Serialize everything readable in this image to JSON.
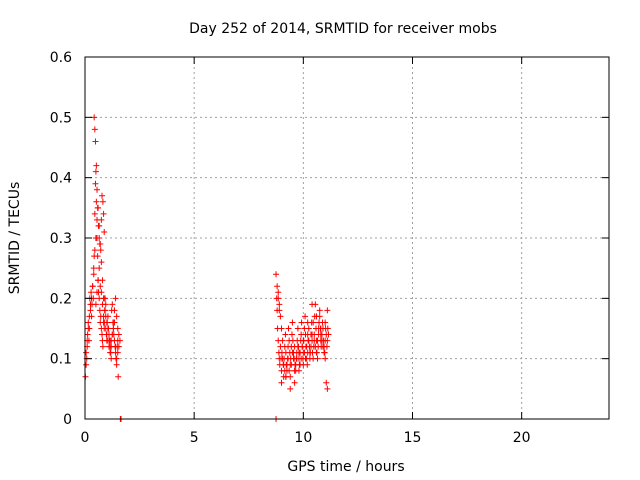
{
  "chart_data": {
    "type": "scatter",
    "title": "Day 252 of 2014, SRMTID for receiver mobs",
    "xlabel": "GPS time / hours",
    "ylabel": "SRMTID / TECUs",
    "xlim": [
      0,
      24
    ],
    "ylim": [
      0,
      0.6
    ],
    "xticks": [
      0,
      5,
      10,
      15,
      20
    ],
    "yticks": [
      0,
      0.1,
      0.2,
      0.3,
      0.4,
      0.5,
      0.6
    ],
    "xtick_labels": [
      "0",
      "5",
      "10",
      "15",
      "20"
    ],
    "ytick_labels": [
      "0",
      "0.1",
      "0.2",
      "0.3",
      "0.4",
      "0.5",
      "0.6"
    ],
    "grid": true,
    "marker": "plus",
    "color": "#ff0000",
    "series": [
      {
        "x": [
          0.02,
          0.05,
          0.08,
          0.1,
          0.12,
          0.15,
          0.18,
          0.2,
          0.22,
          0.25,
          0.28,
          0.3,
          0.32,
          0.35,
          0.38,
          0.4,
          0.42,
          0.45,
          0.48,
          0.5,
          0.52,
          0.55,
          0.58,
          0.6,
          0.62,
          0.65,
          0.68,
          0.7,
          0.72,
          0.75,
          0.78,
          0.8,
          0.82,
          0.85,
          0.88,
          0.9,
          0.92,
          0.95,
          0.98,
          1.0,
          1.02,
          1.05,
          1.08,
          1.1,
          1.12,
          1.15,
          1.18,
          1.2,
          1.22,
          1.25,
          1.28,
          1.3,
          1.32,
          1.35,
          1.38,
          1.4,
          1.42,
          1.45,
          1.48,
          1.5,
          1.52,
          1.55,
          0.05,
          0.1,
          0.15,
          0.2,
          0.25,
          0.3,
          0.35,
          0.4,
          0.45,
          0.5,
          0.55,
          0.6,
          0.65,
          0.7,
          0.75,
          0.8,
          0.85,
          0.9,
          0.95,
          1.0,
          1.05,
          1.1,
          1.15,
          1.2,
          1.25,
          1.3,
          1.35,
          1.4,
          1.45,
          1.5,
          0.42,
          0.45,
          0.48,
          0.52,
          0.55,
          0.58,
          0.62,
          0.65,
          0.68,
          0.72,
          0.75,
          0.78,
          0.82,
          0.85,
          0.88,
          0.92,
          0.5,
          0.55,
          0.6,
          0.65,
          0.7,
          0.75,
          0.8,
          0.85,
          0.9,
          0.95,
          1.0,
          1.05,
          1.1,
          1.15,
          1.2,
          1.25,
          1.3,
          1.35,
          1.4,
          1.45,
          1.5,
          1.55,
          1.6,
          1.62,
          1.65
        ],
        "y": [
          0.07,
          0.09,
          0.1,
          0.12,
          0.14,
          0.16,
          0.13,
          0.15,
          0.2,
          0.18,
          0.21,
          0.17,
          0.19,
          0.22,
          0.2,
          0.24,
          0.27,
          0.34,
          0.39,
          0.41,
          0.36,
          0.3,
          0.27,
          0.23,
          0.21,
          0.2,
          0.18,
          0.16,
          0.17,
          0.15,
          0.14,
          0.13,
          0.12,
          0.16,
          0.15,
          0.2,
          0.18,
          0.19,
          0.14,
          0.13,
          0.16,
          0.17,
          0.15,
          0.14,
          0.13,
          0.12,
          0.11,
          0.1,
          0.18,
          0.19,
          0.16,
          0.15,
          0.14,
          0.13,
          0.12,
          0.11,
          0.1,
          0.09,
          0.12,
          0.13,
          0.07,
          0.14,
          0.11,
          0.13,
          0.15,
          0.17,
          0.19,
          0.2,
          0.22,
          0.25,
          0.28,
          0.3,
          0.33,
          0.35,
          0.32,
          0.29,
          0.26,
          0.23,
          0.2,
          0.18,
          0.17,
          0.16,
          0.15,
          0.14,
          0.13,
          0.12,
          0.14,
          0.16,
          0.18,
          0.2,
          0.17,
          0.15,
          0.5,
          0.48,
          0.46,
          0.42,
          0.38,
          0.35,
          0.32,
          0.3,
          0.29,
          0.28,
          0.33,
          0.37,
          0.36,
          0.34,
          0.31,
          0.2,
          0.19,
          0.21,
          0.23,
          0.25,
          0.22,
          0.21,
          0.19,
          0.17,
          0.16,
          0.15,
          0.14,
          0.13,
          0.12,
          0.11,
          0.13,
          0.14,
          0.15,
          0.16,
          0.12,
          0.1,
          0.11,
          0.12,
          0.13,
          0.0,
          0.0
        ]
      },
      {
        "x": [
          8.75,
          8.78,
          8.8,
          8.82,
          8.85,
          8.88,
          8.9,
          8.92,
          8.95,
          8.98,
          9.0,
          9.02,
          9.05,
          9.08,
          9.1,
          9.12,
          9.15,
          9.18,
          9.2,
          9.22,
          9.25,
          9.28,
          9.3,
          9.32,
          9.35,
          9.38,
          9.4,
          9.42,
          9.45,
          9.48,
          9.5,
          9.52,
          9.55,
          9.58,
          9.6,
          9.62,
          9.65,
          9.68,
          9.7,
          9.72,
          9.75,
          9.78,
          9.8,
          9.82,
          9.85,
          9.88,
          9.9,
          9.92,
          9.95,
          9.98,
          10.0,
          10.02,
          10.05,
          10.08,
          10.1,
          10.12,
          10.15,
          10.18,
          10.2,
          10.22,
          10.25,
          10.28,
          10.3,
          10.32,
          10.35,
          10.38,
          10.4,
          10.42,
          10.45,
          10.48,
          10.5,
          10.52,
          10.55,
          10.58,
          10.6,
          10.62,
          10.65,
          10.68,
          10.7,
          10.72,
          10.75,
          10.78,
          10.8,
          10.82,
          10.85,
          10.88,
          10.9,
          10.92,
          10.95,
          10.98,
          11.0,
          11.02,
          11.05,
          11.08,
          11.1,
          11.12,
          11.15,
          8.85,
          8.9,
          8.95,
          9.0,
          9.05,
          9.1,
          9.15,
          9.2,
          9.25,
          9.3,
          9.35,
          9.4,
          9.45,
          9.5,
          9.55,
          9.6,
          9.65,
          9.7,
          9.75,
          9.8,
          9.85,
          9.9,
          9.95,
          10.0,
          10.05,
          10.1,
          10.15,
          10.2,
          10.25,
          10.3,
          10.35,
          10.4,
          10.45,
          10.5,
          10.55,
          10.6,
          10.65,
          10.7,
          10.75,
          10.8,
          10.85,
          10.9,
          10.95,
          11.0,
          11.05,
          11.1,
          8.8,
          8.85,
          8.9,
          9.0,
          9.2,
          9.4,
          9.6,
          9.8,
          10.0,
          10.2,
          10.4,
          10.6,
          10.8,
          11.0,
          11.1,
          8.75
        ],
        "y": [
          0.24,
          0.2,
          0.18,
          0.15,
          0.13,
          0.11,
          0.1,
          0.09,
          0.12,
          0.1,
          0.08,
          0.11,
          0.13,
          0.09,
          0.07,
          0.1,
          0.12,
          0.14,
          0.11,
          0.09,
          0.08,
          0.1,
          0.12,
          0.15,
          0.13,
          0.11,
          0.09,
          0.1,
          0.12,
          0.14,
          0.16,
          0.13,
          0.11,
          0.1,
          0.12,
          0.09,
          0.08,
          0.1,
          0.11,
          0.13,
          0.15,
          0.12,
          0.1,
          0.09,
          0.11,
          0.13,
          0.14,
          0.16,
          0.12,
          0.1,
          0.11,
          0.13,
          0.15,
          0.17,
          0.14,
          0.12,
          0.1,
          0.09,
          0.11,
          0.13,
          0.15,
          0.12,
          0.1,
          0.11,
          0.14,
          0.16,
          0.13,
          0.11,
          0.1,
          0.12,
          0.14,
          0.17,
          0.19,
          0.15,
          0.13,
          0.11,
          0.1,
          0.12,
          0.14,
          0.16,
          0.18,
          0.15,
          0.13,
          0.12,
          0.14,
          0.16,
          0.15,
          0.13,
          0.12,
          0.11,
          0.13,
          0.15,
          0.14,
          0.12,
          0.13,
          0.15,
          0.14,
          0.21,
          0.19,
          0.17,
          0.15,
          0.1,
          0.09,
          0.08,
          0.07,
          0.09,
          0.1,
          0.08,
          0.07,
          0.09,
          0.11,
          0.1,
          0.08,
          0.09,
          0.1,
          0.12,
          0.11,
          0.09,
          0.1,
          0.12,
          0.13,
          0.11,
          0.1,
          0.12,
          0.14,
          0.13,
          0.11,
          0.12,
          0.14,
          0.16,
          0.13,
          0.12,
          0.11,
          0.13,
          0.15,
          0.17,
          0.14,
          0.13,
          0.12,
          0.11,
          0.1,
          0.06,
          0.05,
          0.22,
          0.2,
          0.18,
          0.06,
          0.07,
          0.05,
          0.06,
          0.08,
          0.09,
          0.16,
          0.19,
          0.17,
          0.15,
          0.16,
          0.18,
          0.0
        ]
      }
    ]
  }
}
